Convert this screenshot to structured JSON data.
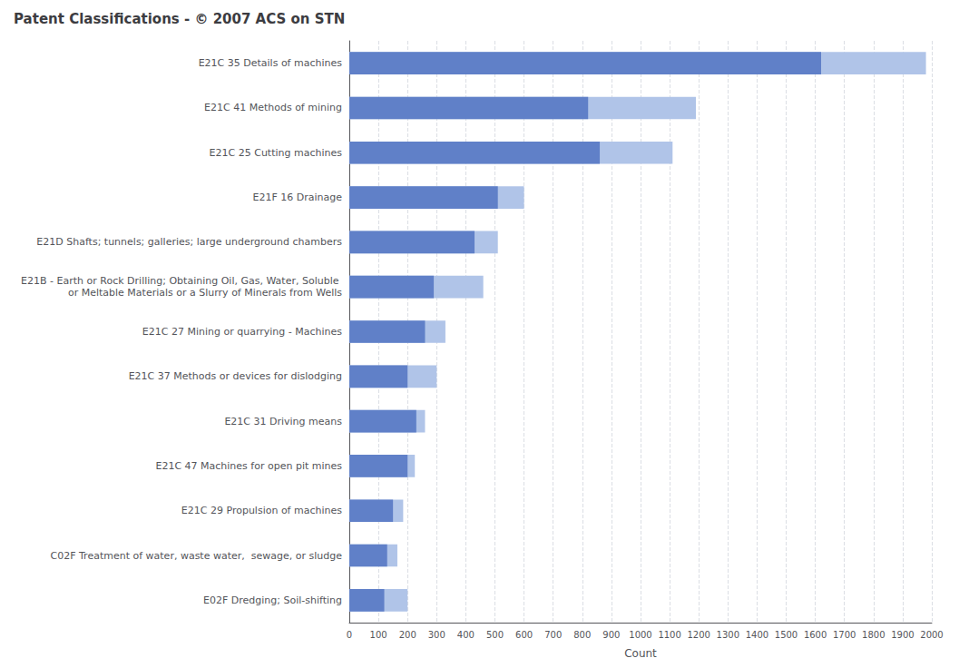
{
  "chart_data": {
    "type": "bar",
    "orientation": "horizontal",
    "title": "Patent Classifications - © 2007 ACS on STN",
    "xlabel": "Count",
    "categories": [
      "E21C 35 Details of machines",
      "E21C 41 Methods of mining",
      "E21C 25 Cutting machines",
      "E21F 16 Drainage",
      "E21D Shafts; tunnels; galleries; large underground chambers",
      "E21B - Earth or Rock Drilling; Obtaining Oil, Gas, Water, Soluble or Meltable Materials or a Slurry of Minerals from Wells",
      "E21C 27 Mining or quarrying - Machines",
      "E21C 37 Methods or devices for dislodging",
      "E21C 31 Driving means",
      "E21C 47 Machines for open pit mines",
      "E21C 29 Propulsion of machines",
      "C02F Treatment of water, waste water,  sewage, or sludge",
      "E02F Dredging; Soil-shifting"
    ],
    "series": [
      {
        "color": "#b0c4e8",
        "values": [
          1980,
          1190,
          1110,
          600,
          510,
          460,
          330,
          300,
          260,
          225,
          185,
          165,
          200
        ]
      },
      {
        "color": "#6080c8",
        "values": [
          1620,
          820,
          860,
          510,
          430,
          290,
          260,
          200,
          230,
          200,
          150,
          130,
          120
        ]
      }
    ],
    "xlim": [
      0,
      2000
    ],
    "xticks": [
      0,
      100,
      200,
      300,
      400,
      500,
      600,
      700,
      800,
      900,
      1000,
      1100,
      1200,
      1300,
      1400,
      1500,
      1600,
      1700,
      1800,
      1900,
      2000
    ],
    "grid": true
  }
}
